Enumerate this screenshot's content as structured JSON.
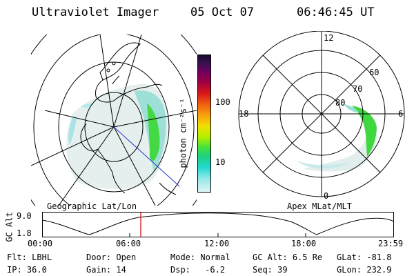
{
  "header": {
    "title": "Ultraviolet Imager",
    "date": "05 Oct 07",
    "time": "06:46:45 UT"
  },
  "colorbar": {
    "unit_label": "photon cm⁻²s⁻¹",
    "ticks": [
      "100",
      "10"
    ]
  },
  "left_panel": {
    "label": "Geographic Lat/Lon"
  },
  "right_panel": {
    "label": "Apex MLat/MLT",
    "mlt_labels": {
      "top": "12",
      "left": "18",
      "right": "6",
      "bottom": "0"
    },
    "lat_labels": [
      "60",
      "70",
      "80"
    ]
  },
  "altitude_plot": {
    "ylabel": "GC Alt",
    "y_ticks": [
      "9.0",
      "1.8"
    ],
    "x_ticks": [
      "00:00",
      "06:00",
      "12:00",
      "18:00",
      "23:59"
    ],
    "marker_color": "#cc0000"
  },
  "status": {
    "filter": {
      "label": "Flt:",
      "value": "LBHL"
    },
    "ip": {
      "label": "IP:",
      "value": "36.0"
    },
    "door": {
      "label": "Door:",
      "value": "Open"
    },
    "gain": {
      "label": "Gain:",
      "value": "14"
    },
    "mode": {
      "label": "Mode:",
      "value": "Normal"
    },
    "dsp": {
      "label": "Dsp:",
      "value": "-6.2"
    },
    "gc_alt": {
      "label": "GC Alt:",
      "value": "6.5 Re"
    },
    "seq": {
      "label": "Seq:",
      "value": "39"
    },
    "glat": {
      "label": "GLat:",
      "value": "-81.8"
    },
    "glon": {
      "label": "GLon:",
      "value": "232.9"
    }
  }
}
